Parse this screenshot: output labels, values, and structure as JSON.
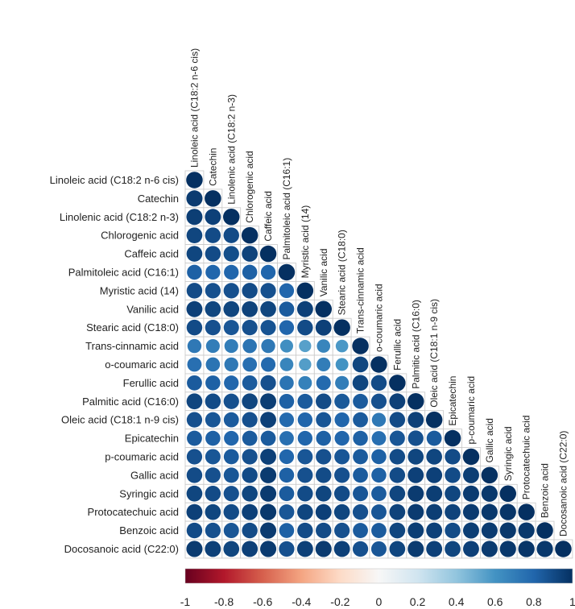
{
  "chart_data": {
    "type": "heatmap",
    "variant": "correlogram-lower-triangle-circles",
    "variables": [
      "Linoleic acid (C18:2 n-6 cis)",
      "Catechin",
      "Linolenic acid (C18:2 n-3)",
      "Chlorogenic acid",
      "Caffeic acid",
      "Palmitoleic acid (C16:1)",
      "Myristic acid (14)",
      "Vanilic acid",
      "Stearic acid (C18:0)",
      "Trans-cinnamic acid",
      "o-coumaric acid",
      "Ferullic acid",
      "Palmitic acid (C16:0)",
      "Oleic acid (C18:1 n-9 cis)",
      "Epicatechin",
      "p-coumaric acid",
      "Gallic acid",
      "Syringic acid",
      "Protocatechuic acid",
      "Benzoic acid",
      "Docosanoic acid (C22:0)"
    ],
    "values": [
      [
        1.0
      ],
      [
        0.96,
        1.0
      ],
      [
        0.95,
        0.94,
        1.0
      ],
      [
        0.92,
        0.9,
        0.9,
        1.0
      ],
      [
        0.92,
        0.9,
        0.89,
        0.93,
        1.0
      ],
      [
        0.82,
        0.8,
        0.8,
        0.82,
        0.8,
        1.0
      ],
      [
        0.9,
        0.88,
        0.88,
        0.9,
        0.88,
        0.8,
        1.0
      ],
      [
        0.94,
        0.92,
        0.92,
        0.93,
        0.92,
        0.84,
        0.94,
        1.0
      ],
      [
        0.9,
        0.88,
        0.86,
        0.88,
        0.87,
        0.8,
        0.9,
        0.94,
        1.0
      ],
      [
        0.72,
        0.7,
        0.7,
        0.74,
        0.72,
        0.62,
        0.55,
        0.66,
        0.58,
        1.0
      ],
      [
        0.76,
        0.74,
        0.72,
        0.76,
        0.78,
        0.66,
        0.56,
        0.7,
        0.6,
        0.92,
        1.0
      ],
      [
        0.84,
        0.82,
        0.8,
        0.84,
        0.88,
        0.74,
        0.68,
        0.78,
        0.7,
        0.92,
        0.9,
        1.0
      ],
      [
        0.92,
        0.9,
        0.88,
        0.92,
        0.95,
        0.82,
        0.84,
        0.9,
        0.85,
        0.84,
        0.88,
        0.94,
        1.0
      ],
      [
        0.88,
        0.86,
        0.84,
        0.88,
        0.94,
        0.78,
        0.8,
        0.86,
        0.8,
        0.84,
        0.72,
        0.9,
        0.94,
        1.0
      ],
      [
        0.84,
        0.82,
        0.8,
        0.84,
        0.84,
        0.76,
        0.8,
        0.82,
        0.8,
        0.82,
        0.76,
        0.86,
        0.88,
        0.84,
        1.0
      ],
      [
        0.88,
        0.86,
        0.84,
        0.88,
        0.94,
        0.8,
        0.86,
        0.88,
        0.86,
        0.84,
        0.82,
        0.9,
        0.92,
        0.92,
        0.9,
        1.0
      ],
      [
        0.9,
        0.88,
        0.86,
        0.9,
        0.96,
        0.82,
        0.88,
        0.9,
        0.88,
        0.84,
        0.82,
        0.9,
        0.94,
        0.94,
        0.9,
        0.95,
        1.0
      ],
      [
        0.92,
        0.9,
        0.88,
        0.92,
        0.96,
        0.84,
        0.9,
        0.92,
        0.9,
        0.86,
        0.84,
        0.92,
        0.96,
        0.95,
        0.92,
        0.96,
        0.97,
        1.0
      ],
      [
        0.94,
        0.92,
        0.9,
        0.94,
        0.97,
        0.86,
        0.92,
        0.94,
        0.92,
        0.88,
        0.86,
        0.93,
        0.96,
        0.95,
        0.93,
        0.96,
        0.97,
        0.98,
        1.0
      ],
      [
        0.9,
        0.88,
        0.86,
        0.9,
        0.96,
        0.82,
        0.9,
        0.9,
        0.88,
        0.84,
        0.84,
        0.92,
        0.95,
        0.94,
        0.9,
        0.95,
        0.96,
        0.97,
        0.97,
        1.0
      ],
      [
        0.96,
        0.94,
        0.92,
        0.94,
        0.96,
        0.88,
        0.94,
        0.96,
        0.94,
        0.88,
        0.86,
        0.92,
        0.96,
        0.94,
        0.92,
        0.94,
        0.96,
        0.97,
        0.98,
        0.97,
        1.0
      ]
    ],
    "colorbar": {
      "min": -1,
      "max": 1,
      "ticks": [
        "-1",
        "-0.8",
        "-0.6",
        "-0.4",
        "-0.2",
        "0",
        "0.2",
        "0.4",
        "0.6",
        "0.8",
        "1"
      ],
      "colors": [
        "#67001f",
        "#b2182b",
        "#d6604d",
        "#f4a582",
        "#fddbc7",
        "#f7f7f7",
        "#d1e5f0",
        "#92c5de",
        "#4393c3",
        "#2166ac",
        "#053061"
      ]
    },
    "title": "",
    "xlabel": "",
    "ylabel": ""
  }
}
